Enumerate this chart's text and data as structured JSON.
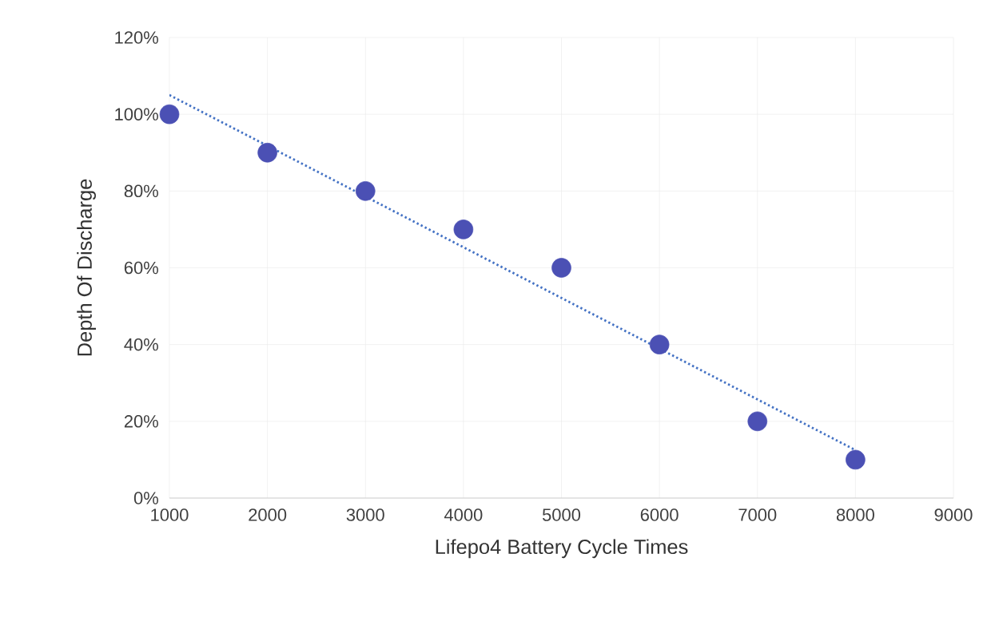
{
  "chart_data": {
    "type": "scatter",
    "xlabel": "Lifepo4 Battery Cycle Times",
    "ylabel": "Depth Of Discharge",
    "series": [
      {
        "color": "#4b50b4",
        "marker": "circle",
        "x": [
          1000,
          2000,
          3000,
          4000,
          5000,
          6000,
          7000,
          8000
        ],
        "values": [
          100,
          90,
          80,
          70,
          60,
          40,
          20,
          10
        ]
      },
      {
        "type": "line",
        "color": "#4472c4",
        "line_style": "dotted",
        "marker": "none",
        "x": [
          1000,
          8000
        ],
        "values": [
          105,
          12.5
        ]
      }
    ],
    "xlim": [
      1000,
      9000
    ],
    "xticks": [
      1000,
      2000,
      3000,
      4000,
      5000,
      6000,
      7000,
      8000,
      9000
    ],
    "ylim": [
      0,
      120
    ],
    "yticks": [
      {
        "value": 0,
        "label": "0%"
      },
      {
        "value": 20,
        "label": "20%"
      },
      {
        "value": 40,
        "label": "40%"
      },
      {
        "value": 60,
        "label": "60%"
      },
      {
        "value": 80,
        "label": "80%"
      },
      {
        "value": 100,
        "label": "100%"
      },
      {
        "value": 120,
        "label": "120%"
      }
    ],
    "grid": true
  }
}
